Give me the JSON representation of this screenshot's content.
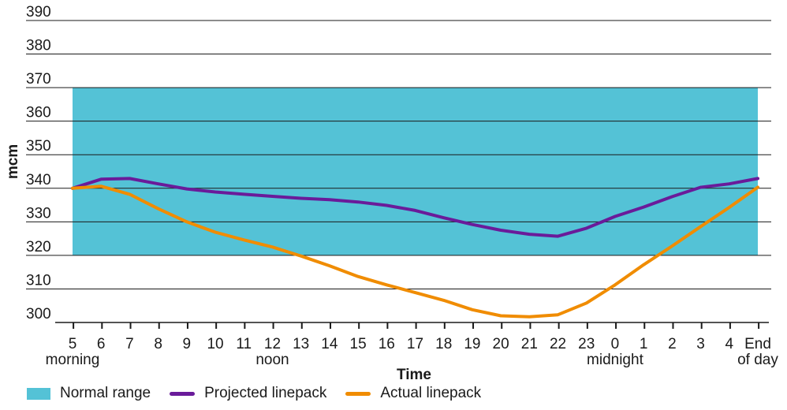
{
  "chart_data": {
    "type": "line",
    "xlabel": "Time",
    "ylabel": "mcm",
    "ylim": [
      300,
      390
    ],
    "yticks": [
      300,
      310,
      320,
      330,
      340,
      350,
      360,
      370,
      380,
      390
    ],
    "categories": [
      "5",
      "6",
      "7",
      "8",
      "9",
      "10",
      "11",
      "12",
      "13",
      "14",
      "15",
      "16",
      "17",
      "18",
      "19",
      "20",
      "21",
      "22",
      "23",
      "0",
      "1",
      "2",
      "3",
      "4",
      "End"
    ],
    "sublabels": {
      "5": "morning",
      "12": "noon",
      "0": "midnight",
      "End": "of day"
    },
    "normal_range": {
      "name": "Normal range",
      "low": 320,
      "high": 370,
      "color": "#54c2d6"
    },
    "series": [
      {
        "name": "Projected linepack",
        "color": "#6a1b9a",
        "values": [
          340,
          342.7,
          342.9,
          341.3,
          339.8,
          338.9,
          338.2,
          337.6,
          337.0,
          336.6,
          335.9,
          334.9,
          333.4,
          331.2,
          329.2,
          327.5,
          326.3,
          325.7,
          328.1,
          331.6,
          334.4,
          337.5,
          340.3,
          341.3,
          342.9
        ]
      },
      {
        "name": "Actual linepack",
        "color": "#f08c00",
        "values": [
          340,
          340.6,
          338.2,
          333.9,
          330.0,
          326.9,
          324.6,
          322.5,
          319.8,
          316.9,
          313.7,
          311.2,
          308.9,
          306.6,
          303.8,
          302.0,
          301.7,
          302.3,
          305.8,
          311.2,
          317.2,
          322.8,
          328.6,
          334.3,
          340.3
        ]
      }
    ],
    "legend_position": "bottom-left"
  },
  "legend": {
    "range_label": "Normal range",
    "projected_label": "Projected linepack",
    "actual_label": "Actual linepack"
  }
}
